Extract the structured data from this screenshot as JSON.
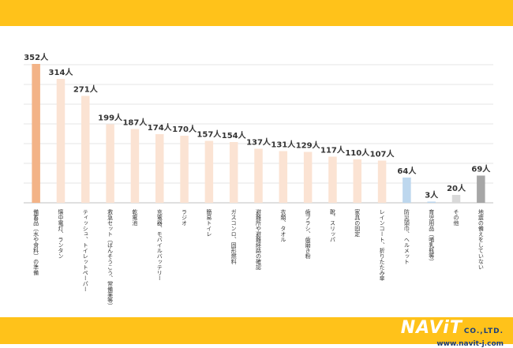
{
  "colors": {
    "band": "#ffc21a",
    "highlight": "#f3b387",
    "normal": "#fbe3d3",
    "blue": "#bdd7ee",
    "gray_light": "#d9d9d9",
    "gray_dark": "#a6a6a6",
    "grid": "#e6e6e6"
  },
  "logo": {
    "main": "NAViT",
    "suffix": "CO.,LTD.",
    "url": "www.navit-j.com"
  },
  "chart_data": {
    "type": "bar",
    "title": "",
    "xlabel": "",
    "ylabel": "",
    "ylim": [
      0,
      370
    ],
    "grid": true,
    "unit_suffix": "人",
    "categories": [
      "備蓄品（水や食料）の準備",
      "懐中電灯、ランタン",
      "ティッシュ、トイレットペーパー",
      "救急セット（ばんそうこう、常備薬等）",
      "乾電池",
      "充電器、モバイルバッテリー",
      "ラジオ",
      "簡易トイレ",
      "ガスコンロ、固形燃料",
      "避難所や避難経路の確認",
      "衣類、タオル",
      "歯ブラシ、歯磨き粉",
      "靴、スリッパ",
      "家具の固定",
      "レインコート、折りたたみ傘",
      "防災頭巾、ヘルメット",
      "育児用品（哺乳瓶等）",
      "その他",
      "地震の備えをしていない"
    ],
    "values": [
      352,
      314,
      271,
      199,
      187,
      174,
      170,
      157,
      154,
      137,
      131,
      129,
      117,
      110,
      107,
      64,
      3,
      20,
      69
    ],
    "bar_colors": [
      "highlight",
      "normal",
      "normal",
      "normal",
      "normal",
      "normal",
      "normal",
      "normal",
      "normal",
      "normal",
      "normal",
      "normal",
      "normal",
      "normal",
      "normal",
      "blue",
      "blue",
      "gray_light",
      "gray_dark"
    ]
  }
}
